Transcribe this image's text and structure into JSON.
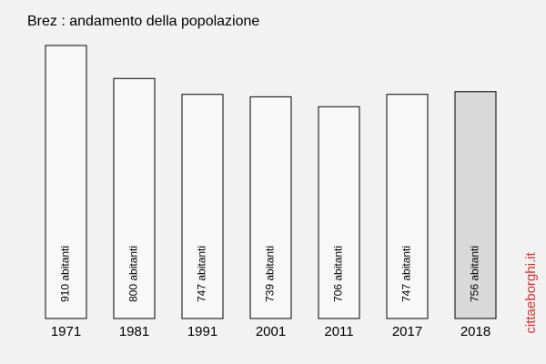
{
  "chart_data": {
    "type": "bar",
    "title": "Brez : andamento della popolazione",
    "categories": [
      "1971",
      "1981",
      "1991",
      "2001",
      "2011",
      "2017",
      "2018"
    ],
    "values": [
      910,
      800,
      747,
      739,
      706,
      747,
      756
    ],
    "value_labels": [
      "910 abitanti",
      "800 abitanti",
      "747 abitanti",
      "739 abitanti",
      "706 abitanti",
      "747 abitanti",
      "756 abitanti"
    ],
    "colors": [
      "#f8f8f8",
      "#f8f8f8",
      "#f8f8f8",
      "#f8f8f8",
      "#f8f8f8",
      "#f8f8f8",
      "#d9d9d9"
    ],
    "ylim": [
      0,
      910
    ],
    "watermark": "cittaeborghi.it"
  }
}
